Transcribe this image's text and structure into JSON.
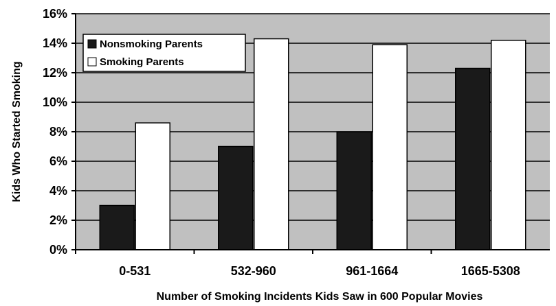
{
  "chart_data": {
    "type": "bar",
    "title": "",
    "xlabel": "Number of Smoking Incidents Kids Saw in 600 Popular Movies",
    "ylabel": "Kids Who Started Smoking",
    "categories": [
      "0-531",
      "532-960",
      "961-1664",
      "1665-5308"
    ],
    "series": [
      {
        "name": "Nonsmoking Parents",
        "values": [
          3.0,
          7.0,
          8.0,
          12.3
        ],
        "color": "#1a1a1a"
      },
      {
        "name": "Smoking Parents",
        "values": [
          8.6,
          14.3,
          13.9,
          14.2
        ],
        "color": "#ffffff"
      }
    ],
    "ylim": [
      0,
      16
    ],
    "yticks": [
      0,
      2,
      4,
      6,
      8,
      10,
      12,
      14,
      16
    ],
    "ytick_labels": [
      "0%",
      "2%",
      "4%",
      "6%",
      "8%",
      "10%",
      "12%",
      "14%",
      "16%"
    ],
    "grid": true,
    "legend_position": "top-left",
    "plot_background": "#c0c0c0"
  }
}
